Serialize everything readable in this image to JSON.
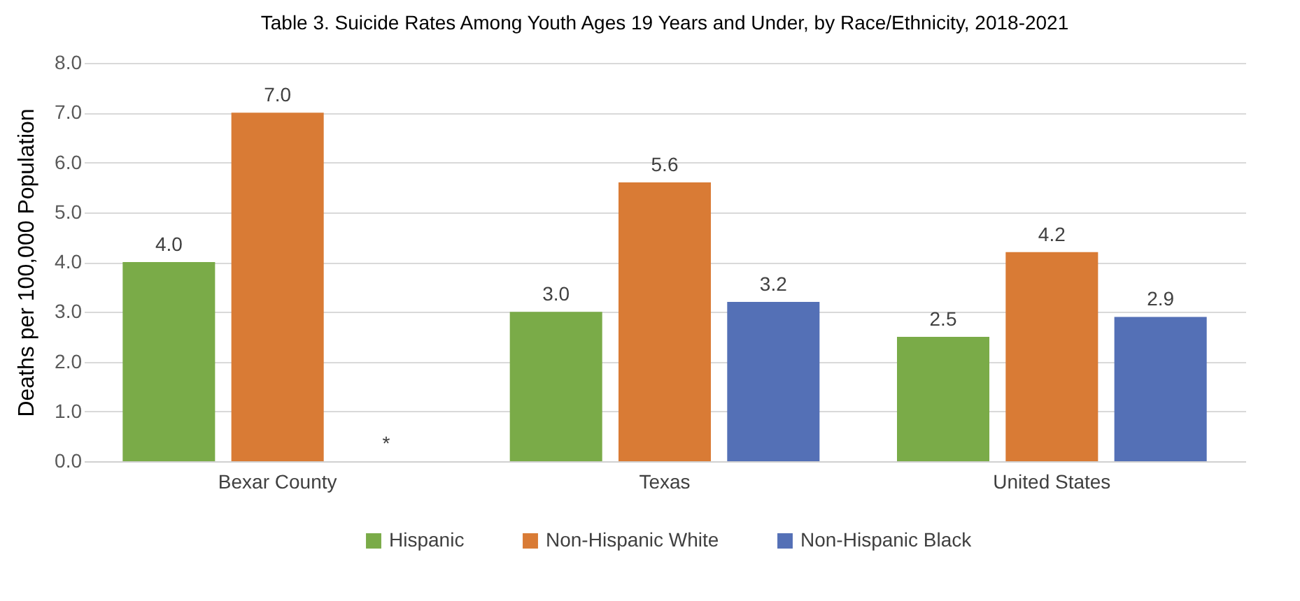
{
  "chart_data": {
    "type": "bar",
    "title": "Table 3. Suicide Rates Among Youth Ages 19 Years and Under, by Race/Ethnicity, 2018-2021",
    "ylabel": "Deaths per 100,000 Population",
    "categories": [
      "Bexar County",
      "Texas",
      "United States"
    ],
    "series": [
      {
        "name": "Hispanic",
        "color": "#7aab48",
        "values": [
          4.0,
          3.0,
          2.5
        ],
        "value_labels": [
          "4.0",
          "3.0",
          "2.5"
        ]
      },
      {
        "name": "Non-Hispanic White",
        "color": "#d97b35",
        "values": [
          7.0,
          5.6,
          4.2
        ],
        "value_labels": [
          "7.0",
          "5.6",
          "4.2"
        ]
      },
      {
        "name": "Non-Hispanic Black",
        "color": "#5470b6",
        "values": [
          null,
          3.2,
          2.9
        ],
        "value_labels": [
          "*",
          "3.2",
          "2.9"
        ]
      }
    ],
    "ylim": [
      0,
      8
    ],
    "yticks": [
      {
        "value": 0,
        "label": "0.0"
      },
      {
        "value": 1,
        "label": "1.0"
      },
      {
        "value": 2,
        "label": "2.0"
      },
      {
        "value": 3,
        "label": "3.0"
      },
      {
        "value": 4,
        "label": "4.0"
      },
      {
        "value": 5,
        "label": "5.0"
      },
      {
        "value": 6,
        "label": "6.0"
      },
      {
        "value": 7,
        "label": "7.0"
      },
      {
        "value": 8,
        "label": "8.0"
      }
    ],
    "grid": "y",
    "legend": "bottom"
  }
}
